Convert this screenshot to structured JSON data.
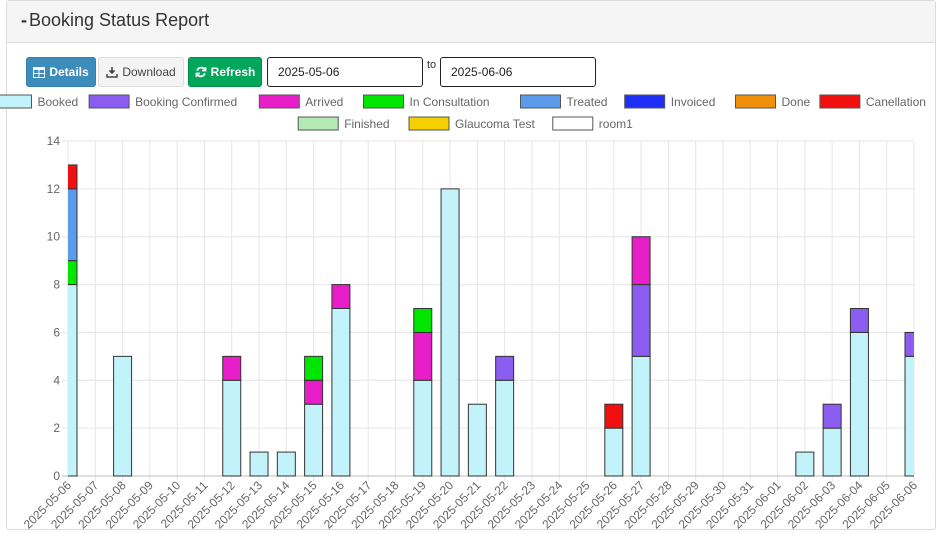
{
  "header": {
    "title": "Booking Status Report"
  },
  "toolbar": {
    "details_label": "Details",
    "download_label": "Download",
    "refresh_label": "Refresh",
    "from_date": "2025-05-06",
    "to_label": "to",
    "to_date": "2025-06-06"
  },
  "chart_data": {
    "type": "bar",
    "stacked": true,
    "ylim": [
      0,
      14
    ],
    "yticks": [
      0,
      2,
      4,
      6,
      8,
      10,
      12,
      14
    ],
    "grid": true,
    "legend_position": "top",
    "categories": [
      "2025-05-06",
      "2025-05-07",
      "2025-05-08",
      "2025-05-09",
      "2025-05-10",
      "2025-05-11",
      "2025-05-12",
      "2025-05-13",
      "2025-05-14",
      "2025-05-15",
      "2025-05-16",
      "2025-05-17",
      "2025-05-18",
      "2025-05-19",
      "2025-05-20",
      "2025-05-21",
      "2025-05-22",
      "2025-05-23",
      "2025-05-24",
      "2025-05-25",
      "2025-05-26",
      "2025-05-27",
      "2025-05-28",
      "2025-05-29",
      "2025-05-30",
      "2025-05-31",
      "2025-06-01",
      "2025-06-02",
      "2025-06-03",
      "2025-06-04",
      "2025-06-05",
      "2025-06-06"
    ],
    "series": [
      {
        "name": "Booked",
        "color": "#c2f2fa",
        "values": [
          8,
          0,
          5,
          0,
          0,
          0,
          4,
          1,
          1,
          3,
          7,
          0,
          0,
          4,
          12,
          3,
          4,
          0,
          0,
          0,
          2,
          5,
          0,
          0,
          0,
          0,
          0,
          1,
          2,
          6,
          0,
          5
        ]
      },
      {
        "name": "Booking Confirmed",
        "color": "#8b5cf0",
        "values": [
          0,
          0,
          0,
          0,
          0,
          0,
          0,
          0,
          0,
          0,
          0,
          0,
          0,
          0,
          0,
          0,
          1,
          0,
          0,
          0,
          0,
          3,
          0,
          0,
          0,
          0,
          0,
          0,
          1,
          1,
          0,
          1
        ]
      },
      {
        "name": "Arrived",
        "color": "#e81ec8",
        "values": [
          0,
          0,
          0,
          0,
          0,
          0,
          1,
          0,
          0,
          1,
          1,
          0,
          0,
          2,
          0,
          0,
          0,
          0,
          0,
          0,
          0,
          2,
          0,
          0,
          0,
          0,
          0,
          0,
          0,
          0,
          0,
          0
        ]
      },
      {
        "name": "In Consultation",
        "color": "#00e600",
        "values": [
          1,
          0,
          0,
          0,
          0,
          0,
          0,
          0,
          0,
          1,
          0,
          0,
          0,
          1,
          0,
          0,
          0,
          0,
          0,
          0,
          0,
          0,
          0,
          0,
          0,
          0,
          0,
          0,
          0,
          0,
          0,
          0
        ]
      },
      {
        "name": "Treated",
        "color": "#5b9bea",
        "values": [
          3,
          0,
          0,
          0,
          0,
          0,
          0,
          0,
          0,
          0,
          0,
          0,
          0,
          0,
          0,
          0,
          0,
          0,
          0,
          0,
          0,
          0,
          0,
          0,
          0,
          0,
          0,
          0,
          0,
          0,
          0,
          0
        ]
      },
      {
        "name": "Invoiced",
        "color": "#1f2ff5",
        "values": [
          0,
          0,
          0,
          0,
          0,
          0,
          0,
          0,
          0,
          0,
          0,
          0,
          0,
          0,
          0,
          0,
          0,
          0,
          0,
          0,
          0,
          0,
          0,
          0,
          0,
          0,
          0,
          0,
          0,
          0,
          0,
          0
        ]
      },
      {
        "name": "Done",
        "color": "#f0900a",
        "values": [
          0,
          0,
          0,
          0,
          0,
          0,
          0,
          0,
          0,
          0,
          0,
          0,
          0,
          0,
          0,
          0,
          0,
          0,
          0,
          0,
          0,
          0,
          0,
          0,
          0,
          0,
          0,
          0,
          0,
          0,
          0,
          0
        ]
      },
      {
        "name": "Canellation",
        "color": "#f01010",
        "values": [
          1,
          0,
          0,
          0,
          0,
          0,
          0,
          0,
          0,
          0,
          0,
          0,
          0,
          0,
          0,
          0,
          0,
          0,
          0,
          0,
          1,
          0,
          0,
          0,
          0,
          0,
          0,
          0,
          0,
          0,
          0,
          0
        ]
      },
      {
        "name": "Finished",
        "color": "#b4eab4",
        "values": [
          0,
          0,
          0,
          0,
          0,
          0,
          0,
          0,
          0,
          0,
          0,
          0,
          0,
          0,
          0,
          0,
          0,
          0,
          0,
          0,
          0,
          0,
          0,
          0,
          0,
          0,
          0,
          0,
          0,
          0,
          0,
          0
        ]
      },
      {
        "name": "Glaucoma Test",
        "color": "#f5d000",
        "values": [
          0,
          0,
          0,
          0,
          0,
          0,
          0,
          0,
          0,
          0,
          0,
          0,
          0,
          0,
          0,
          0,
          0,
          0,
          0,
          0,
          0,
          0,
          0,
          0,
          0,
          0,
          0,
          0,
          0,
          0,
          0,
          0
        ]
      },
      {
        "name": "room1",
        "color": "#ffffff",
        "values": [
          0,
          0,
          0,
          0,
          0,
          0,
          0,
          0,
          0,
          0,
          0,
          0,
          0,
          0,
          0,
          0,
          0,
          0,
          0,
          0,
          0,
          0,
          0,
          0,
          0,
          0,
          0,
          0,
          0,
          0,
          0,
          0
        ]
      }
    ]
  }
}
